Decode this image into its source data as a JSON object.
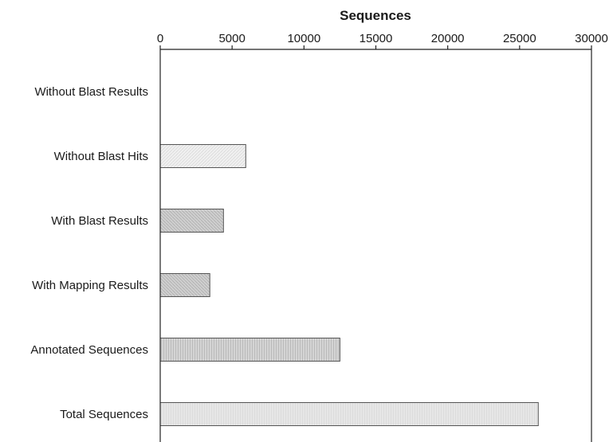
{
  "chart_data": {
    "type": "bar",
    "orientation": "horizontal",
    "xlabel": "Sequences",
    "xlabel_position": "top",
    "xlim": [
      0,
      30000
    ],
    "xticks": [
      0,
      5000,
      10000,
      15000,
      20000,
      25000,
      30000
    ],
    "xtick_labels": [
      "0",
      "5000",
      "10000",
      "15000",
      "20000",
      "25000",
      "30000"
    ],
    "grid": false,
    "categories": [
      "Without Blast Results",
      "Without Blast Hits",
      "With Blast Results",
      "With Mapping Results",
      "Annotated Sequences",
      "Total Sequences"
    ],
    "values": [
      0,
      5950,
      4400,
      3450,
      12500,
      26300
    ],
    "bar_fills": [
      "#ececec",
      "#ececec",
      "#c8c8c8",
      "#c8c8c8",
      "#cdcdcd",
      "#e2e2e2"
    ],
    "bar_stroke": "#555555",
    "axis_color": "#222222"
  }
}
